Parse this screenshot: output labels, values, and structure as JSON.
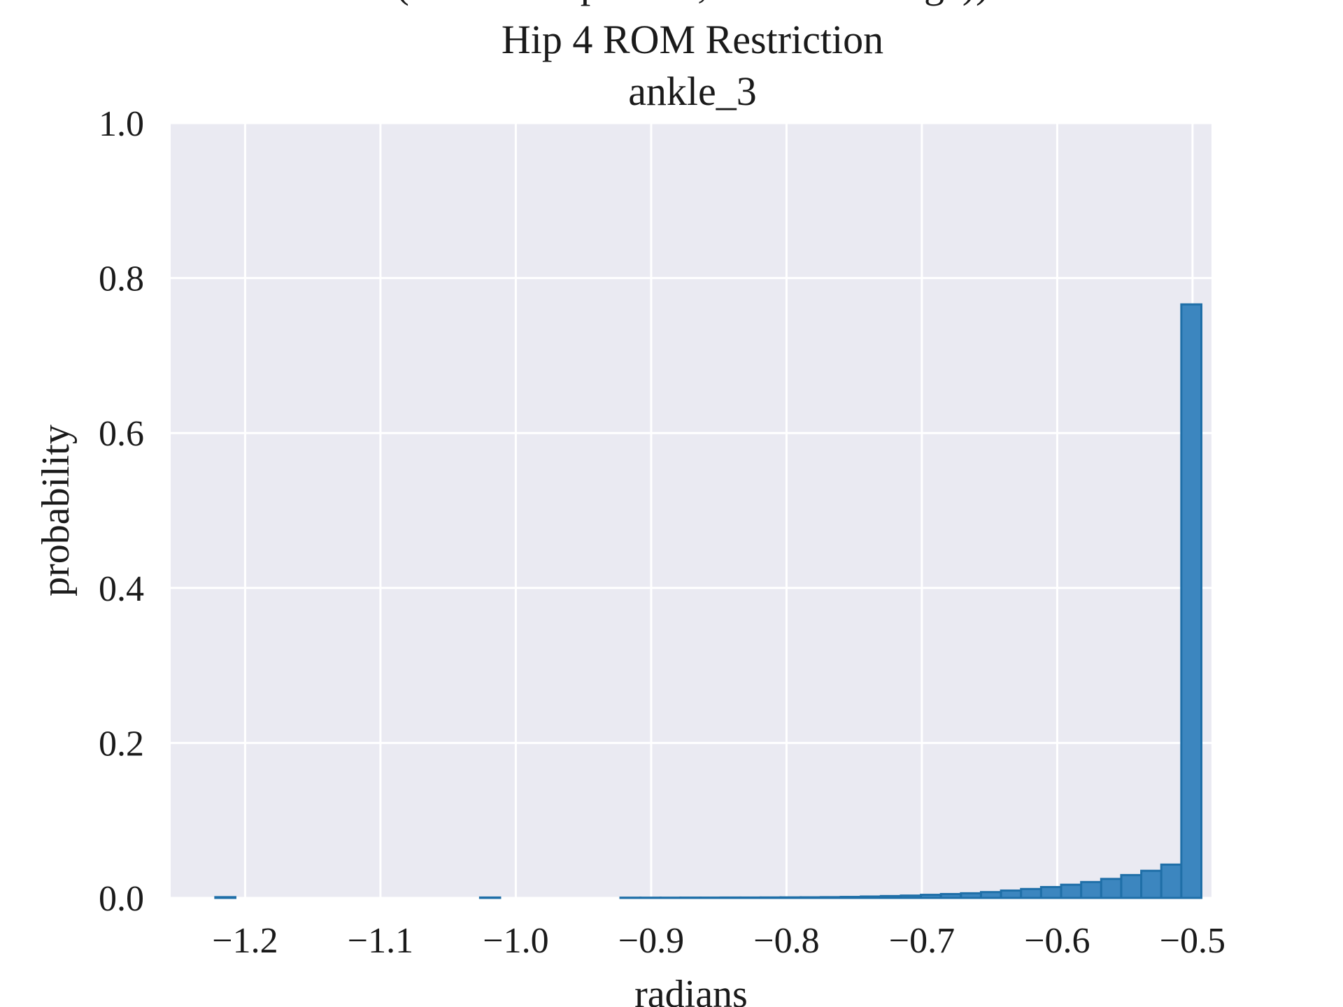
{
  "chart_data": {
    "type": "bar",
    "title_lines": [
      "(retain NN params, discard storage))",
      "Hip 4 ROM Restriction",
      "ankle_3"
    ],
    "xlabel": "radians",
    "ylabel": "probability",
    "xlim": [
      -1.255,
      -0.486
    ],
    "ylim": [
      0,
      1.0
    ],
    "xticks": [
      -1.2,
      -1.1,
      -1.0,
      -0.9,
      -0.8,
      -0.7,
      -0.6,
      -0.5
    ],
    "xtick_labels": [
      "−1.2",
      "−1.1",
      "−1.0",
      "−0.9",
      "−0.8",
      "−0.7",
      "−0.6",
      "−0.5"
    ],
    "yticks": [
      0.0,
      0.2,
      0.4,
      0.6,
      0.8,
      1.0
    ],
    "ytick_labels": [
      "0.0",
      "0.2",
      "0.4",
      "0.6",
      "0.8",
      "1.0"
    ],
    "grid": true,
    "histtype": "stepfilled",
    "bin_width": 0.0148,
    "bins": [
      {
        "x0": -1.222,
        "y": 0.001
      },
      {
        "x0": -1.0264,
        "y": 0.0005
      },
      {
        "x0": -0.9227,
        "y": 0.0003
      },
      {
        "x0": -0.9079,
        "y": 0.0003
      },
      {
        "x0": -0.8931,
        "y": 0.0003
      },
      {
        "x0": -0.8783,
        "y": 0.0004
      },
      {
        "x0": -0.8635,
        "y": 0.0004
      },
      {
        "x0": -0.8487,
        "y": 0.0005
      },
      {
        "x0": -0.8339,
        "y": 0.0005
      },
      {
        "x0": -0.8191,
        "y": 0.0006
      },
      {
        "x0": -0.8043,
        "y": 0.0007
      },
      {
        "x0": -0.7895,
        "y": 0.0008
      },
      {
        "x0": -0.7747,
        "y": 0.001
      },
      {
        "x0": -0.7599,
        "y": 0.0013
      },
      {
        "x0": -0.7451,
        "y": 0.0018
      },
      {
        "x0": -0.7303,
        "y": 0.0024
      },
      {
        "x0": -0.7155,
        "y": 0.003
      },
      {
        "x0": -0.7007,
        "y": 0.004
      },
      {
        "x0": -0.6859,
        "y": 0.005
      },
      {
        "x0": -0.6711,
        "y": 0.006
      },
      {
        "x0": -0.6563,
        "y": 0.0075
      },
      {
        "x0": -0.6415,
        "y": 0.0095
      },
      {
        "x0": -0.6267,
        "y": 0.0115
      },
      {
        "x0": -0.6119,
        "y": 0.014
      },
      {
        "x0": -0.5971,
        "y": 0.017
      },
      {
        "x0": -0.5823,
        "y": 0.0205
      },
      {
        "x0": -0.5675,
        "y": 0.0245
      },
      {
        "x0": -0.5527,
        "y": 0.0295
      },
      {
        "x0": -0.5379,
        "y": 0.035
      },
      {
        "x0": -0.5231,
        "y": 0.043
      },
      {
        "x0": -0.5083,
        "y": 0.766
      }
    ],
    "colors": {
      "plot_background": "#eaeaf2",
      "grid": "#ffffff",
      "bar_fill": "#3c86bf",
      "bar_edge": "#1f6fa8"
    }
  }
}
